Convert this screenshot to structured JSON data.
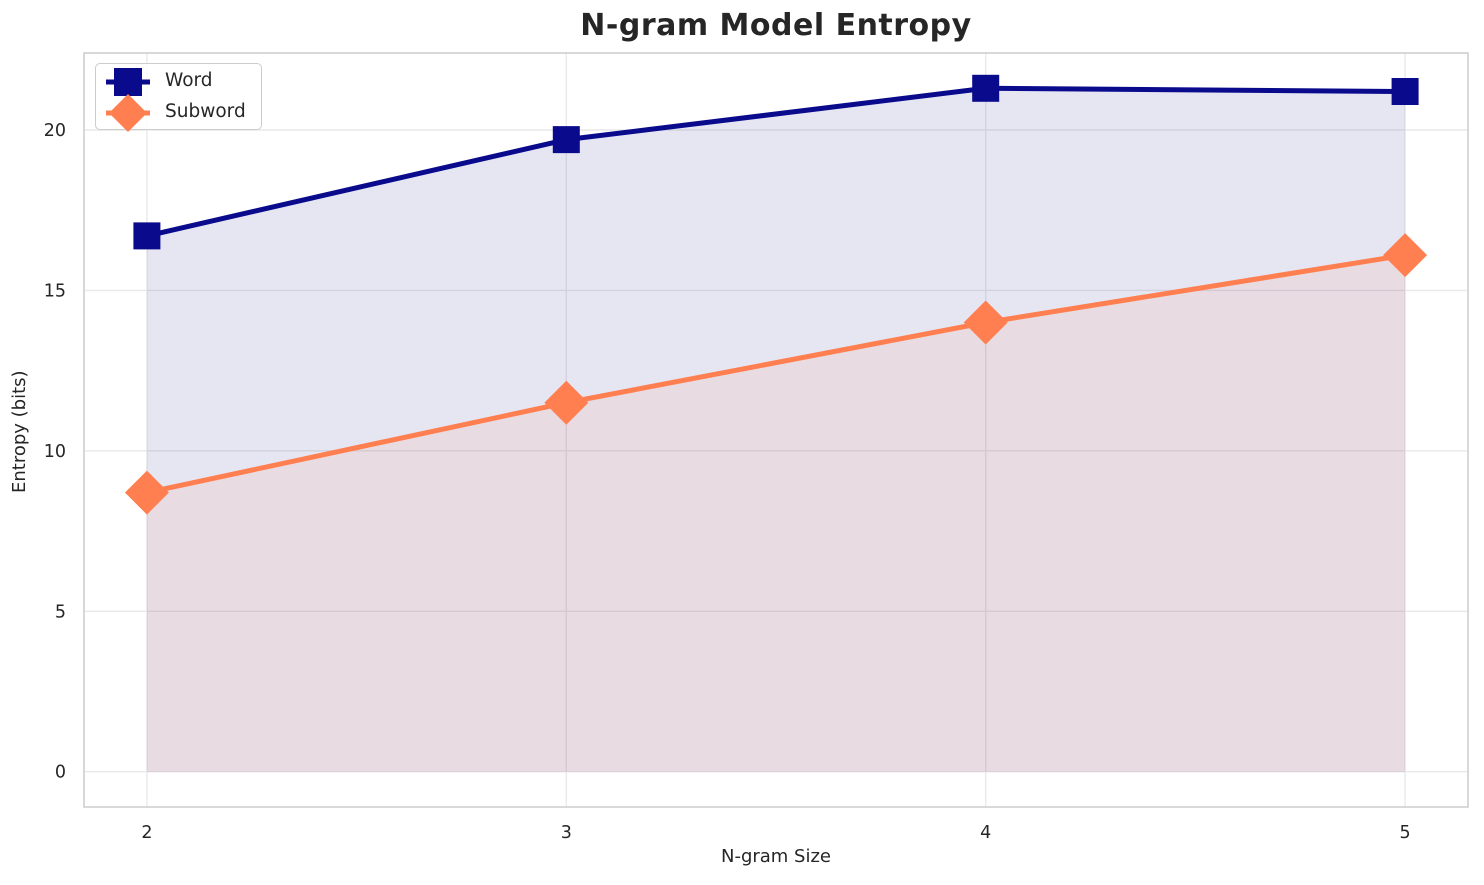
{
  "figure": {
    "background": "#FFFFFF"
  },
  "chart_data": {
    "type": "line",
    "title": "N-gram Model Entropy",
    "xlabel": "N-gram Size",
    "ylabel": "Entropy (bits)",
    "x": [
      2,
      3,
      4,
      5
    ],
    "xtick_labels": [
      "2",
      "3",
      "4",
      "5"
    ],
    "yticks": [
      0,
      5,
      10,
      15,
      20
    ],
    "xlim": [
      1.85,
      5.15
    ],
    "ylim": [
      -1.1,
      22.4
    ],
    "grid": true,
    "legend_position": "upper-left",
    "fill_to_zero": true,
    "series": [
      {
        "name": "Word",
        "values": [
          16.7,
          19.7,
          21.3,
          21.2
        ],
        "color": "#0A0A8C",
        "marker": "square",
        "fill_opacity": 0.1
      },
      {
        "name": "Subword",
        "values": [
          8.7,
          11.5,
          14.0,
          16.1
        ],
        "color": "#FF7F50",
        "marker": "diamond",
        "fill_opacity": 0.1
      }
    ],
    "colors": {
      "grid": "#E9E9E9",
      "spine": "#CCCCCC",
      "text": "#262626"
    }
  }
}
